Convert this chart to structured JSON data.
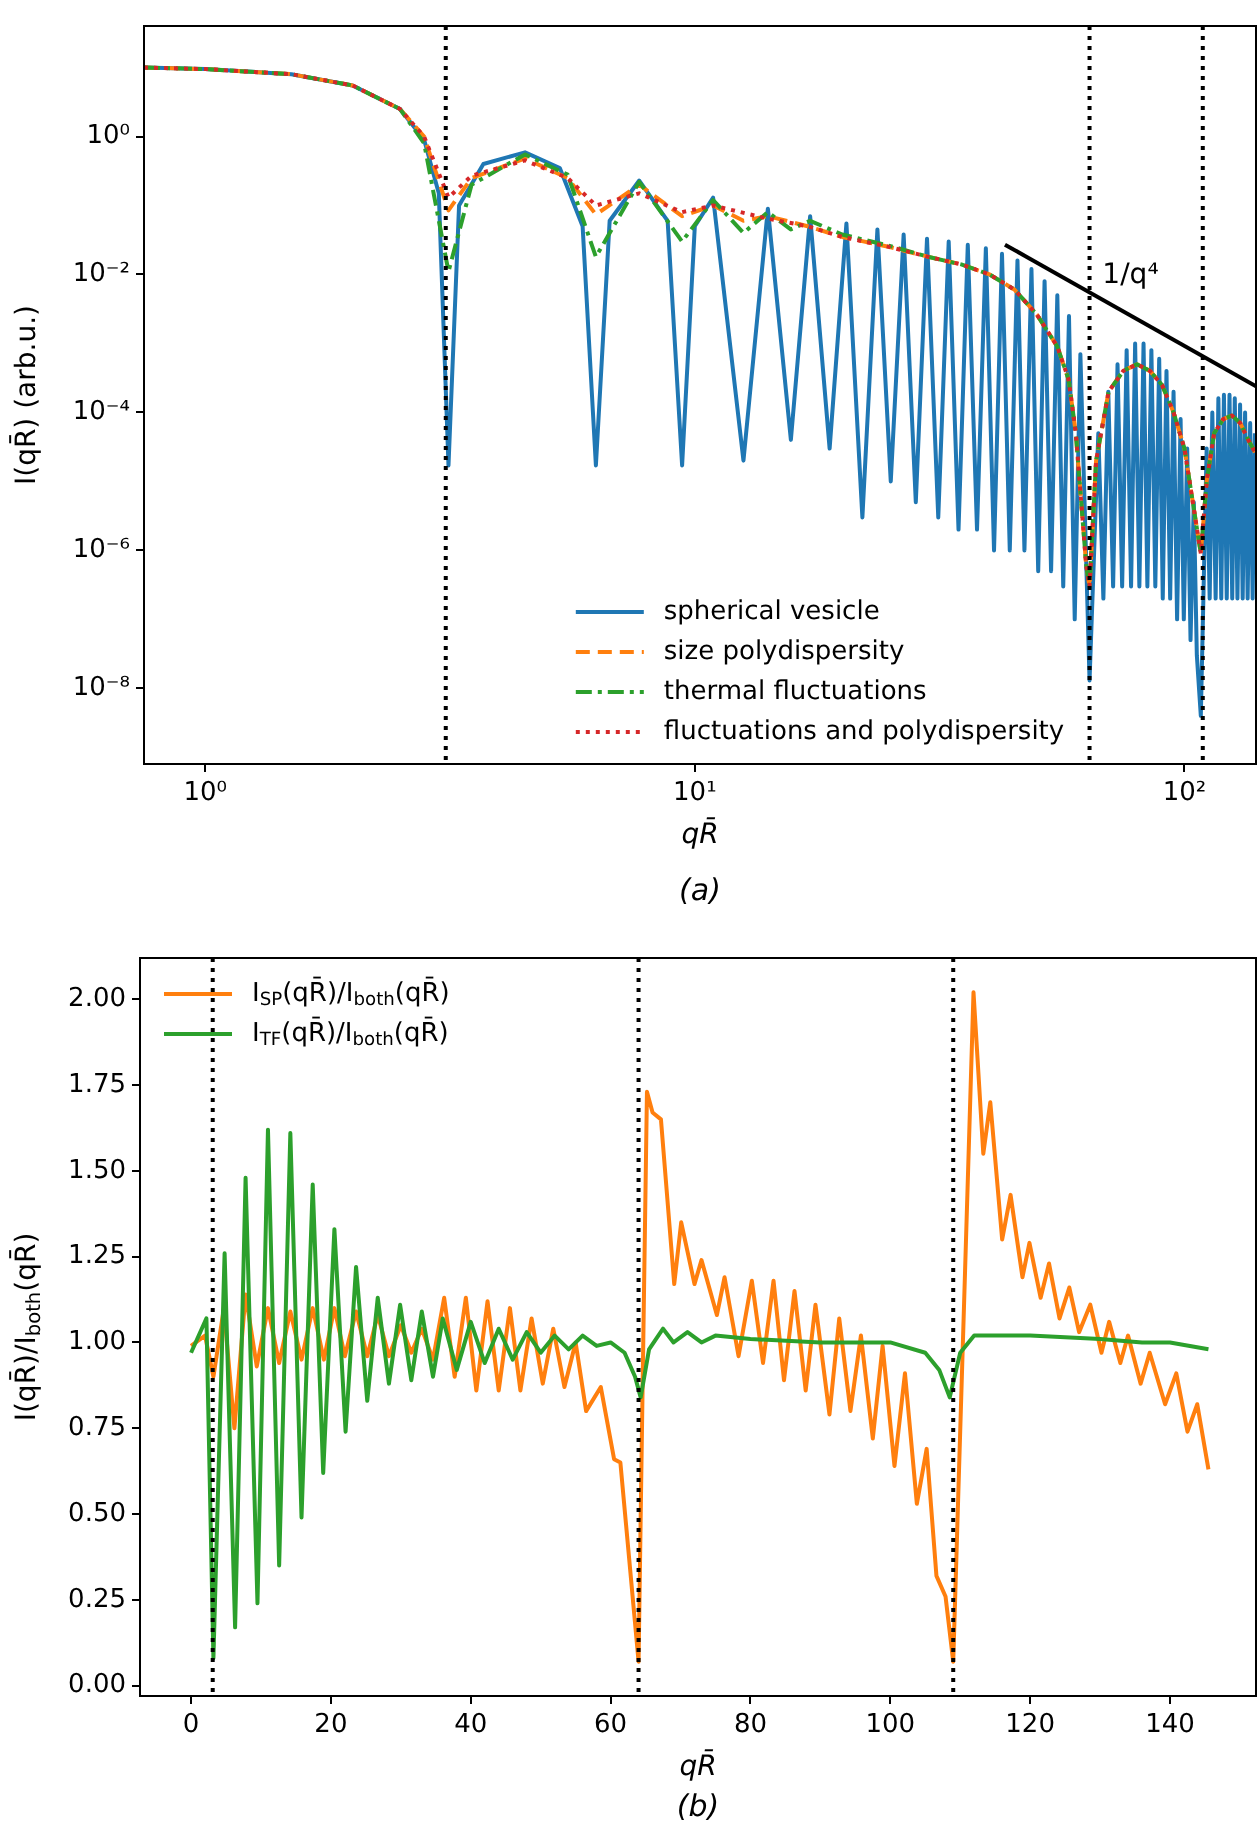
{
  "chart_data": [
    {
      "type": "line",
      "log": "xy",
      "xlabel": "qR̄",
      "ylabel": "I(qR̄) (arb.u.)",
      "legend": "bottom",
      "xlim": [
        0.75,
        140
      ],
      "ylim": [
        8e-10,
        40
      ],
      "xticks": [
        {
          "value": 1,
          "label": "10⁰"
        },
        {
          "value": 10,
          "label": "10¹"
        },
        {
          "value": 100,
          "label": "10²"
        }
      ],
      "yticks": [
        {
          "value": 1e-08,
          "label": "10⁻⁸"
        },
        {
          "value": 1e-06,
          "label": "10⁻⁶"
        },
        {
          "value": 0.0001,
          "label": "10⁻⁴"
        },
        {
          "value": 0.01,
          "label": "10⁻²"
        },
        {
          "value": 1,
          "label": "10⁰"
        }
      ],
      "series": [
        {
          "name": "spherical vesicle",
          "color": "#1f77b4",
          "line_style": "solid",
          "x": [
            0.75,
            1,
            1.5,
            2,
            2.5,
            2.8,
            3.0,
            3.14,
            3.3,
            3.7,
            4.5,
            5.3,
            5.9,
            6.28,
            6.7,
            7.7,
            8.8,
            9.42,
            10,
            10.9,
            12.57,
            14.1,
            15.71,
            17.2,
            18.85,
            20.4,
            21.99,
            23.6,
            25.13,
            26.7,
            28.27,
            29.8,
            31.42,
            33,
            34.56,
            36.1,
            37.7,
            39.3,
            40.84,
            42.4,
            43.98,
            45.6,
            47.12,
            48.7,
            50.27,
            51.8,
            53.41,
            55,
            56.55,
            58.1,
            59.69,
            61.3,
            64,
            66.7,
            68.3,
            69.9,
            71.5,
            73,
            74.6,
            76.2,
            77.8,
            79.3,
            80.9,
            82.5,
            84,
            85.6,
            87.2,
            88.8,
            90.3,
            91.9,
            93.5,
            95,
            96.6,
            98.2,
            99.7,
            101.3,
            102.9,
            104.5,
            106,
            108,
            111,
            112.6,
            114,
            115.8,
            117.3,
            118.9,
            120.4,
            122,
            123.6,
            125.2,
            126.7,
            128.3,
            129.9,
            131.5,
            133,
            134.6,
            136.2,
            137.8,
            139.3
          ],
          "values": [
            10,
            9.5,
            8,
            5.5,
            2.5,
            0.9,
            0.15,
            1.7e-05,
            0.1,
            0.4,
            0.59,
            0.35,
            0.05,
            1.7e-05,
            0.06,
            0.23,
            0.06,
            1.7e-05,
            0.05,
            0.13,
            2e-05,
            0.09,
            4e-05,
            0.07,
            3e-05,
            0.055,
            3e-06,
            0.045,
            1e-05,
            0.038,
            5e-06,
            0.033,
            3e-06,
            0.03,
            2e-06,
            0.027,
            2e-06,
            0.024,
            1e-06,
            0.02,
            1e-06,
            0.016,
            1e-06,
            0.012,
            5e-07,
            0.008,
            5e-07,
            0.005,
            3e-07,
            0.0025,
            1e-07,
            0.0007,
            1.3e-08,
            5e-05,
            2e-07,
            0.0002,
            3e-07,
            0.0005,
            3e-07,
            0.0008,
            3e-07,
            0.001,
            3e-07,
            0.001,
            3e-07,
            0.0008,
            3e-07,
            0.0006,
            2e-07,
            0.0004,
            2e-07,
            0.0002,
            1e-07,
            8e-05,
            1e-07,
            3e-05,
            5e-08,
            5e-06,
            3e-08,
            4e-09,
            3e-05,
            2e-07,
            0.0001,
            2e-07,
            0.00016,
            2e-07,
            0.00018,
            2e-07,
            0.00018,
            2e-07,
            0.00016,
            2e-07,
            0.00013,
            2e-07,
            0.0001,
            2e-07,
            7e-05,
            2e-07,
            5e-05
          ]
        },
        {
          "name": "size polydispersity",
          "color": "#ff7f0e",
          "line_style": "dashed",
          "x": [
            0.75,
            1,
            1.5,
            2,
            2.5,
            2.8,
            3.14,
            3.5,
            4.5,
            5.5,
            6.28,
            7.7,
            9.42,
            10.9,
            12.57,
            14.1,
            17,
            20,
            25,
            30,
            35,
            40,
            45,
            50,
            55,
            58,
            60,
            63,
            64,
            66,
            70,
            75,
            80,
            85,
            90,
            95,
            100,
            104,
            108,
            111,
            115,
            120,
            125,
            130,
            135,
            140
          ],
          "values": [
            10,
            9.5,
            8,
            5.5,
            2.5,
            1,
            0.085,
            0.25,
            0.48,
            0.25,
            0.074,
            0.2,
            0.07,
            0.1,
            0.06,
            0.07,
            0.05,
            0.035,
            0.025,
            0.018,
            0.014,
            0.01,
            0.006,
            0.0026,
            0.0009,
            0.0003,
            5e-05,
            6e-07,
            3e-07,
            2e-05,
            0.0002,
            0.0004,
            0.0005,
            0.0004,
            0.00025,
            0.0001,
            3e-05,
            5e-06,
            9e-07,
            1e-05,
            5e-05,
            8e-05,
            9e-05,
            7e-05,
            4e-05,
            2.5e-05
          ]
        },
        {
          "name": "thermal fluctuations",
          "color": "#2ca02c",
          "line_style": "dashdot",
          "x": [
            0.75,
            1,
            1.5,
            2,
            2.5,
            2.8,
            3.14,
            3.5,
            4.5,
            5.5,
            6.28,
            7.7,
            9.42,
            10.9,
            12.57,
            14.1,
            15.7,
            17.2,
            20,
            25,
            30,
            35,
            40,
            45,
            50,
            55,
            58,
            60,
            63,
            64,
            66,
            70,
            75,
            80,
            85,
            90,
            95,
            100,
            104,
            108,
            111,
            115,
            120,
            125,
            130,
            135,
            140
          ],
          "values": [
            10,
            9.5,
            8,
            5.5,
            2.5,
            0.8,
            0.011,
            0.2,
            0.55,
            0.28,
            0.018,
            0.22,
            0.03,
            0.12,
            0.04,
            0.08,
            0.045,
            0.06,
            0.038,
            0.026,
            0.018,
            0.014,
            0.01,
            0.006,
            0.0026,
            0.0009,
            0.0003,
            5e-05,
            6e-07,
            3e-07,
            2e-05,
            0.0002,
            0.0004,
            0.0005,
            0.0004,
            0.00025,
            0.0001,
            3e-05,
            5e-06,
            9e-07,
            1e-05,
            5e-05,
            8e-05,
            9e-05,
            7e-05,
            4e-05,
            2.5e-05
          ]
        },
        {
          "name": "fluctuations and polydispersity",
          "color": "#d62728",
          "line_style": "dotted",
          "x": [
            0.75,
            1,
            1.5,
            2,
            2.5,
            2.8,
            3.14,
            3.5,
            4.5,
            5.5,
            6.28,
            7.7,
            9.42,
            10.9,
            14,
            17,
            20,
            25,
            30,
            35,
            40,
            45,
            50,
            55,
            58,
            60,
            63,
            64,
            66,
            70,
            75,
            80,
            85,
            90,
            95,
            100,
            104,
            108,
            111,
            115,
            120,
            125,
            130,
            135,
            140
          ],
          "values": [
            10,
            9.5,
            8,
            5.5,
            2.5,
            1,
            0.13,
            0.27,
            0.45,
            0.25,
            0.1,
            0.15,
            0.08,
            0.1,
            0.065,
            0.05,
            0.035,
            0.025,
            0.018,
            0.014,
            0.01,
            0.006,
            0.0026,
            0.0009,
            0.0003,
            5e-05,
            6e-07,
            3e-07,
            2e-05,
            0.0002,
            0.0004,
            0.0005,
            0.0004,
            0.00025,
            0.0001,
            3e-05,
            5e-06,
            9e-07,
            1e-05,
            5e-05,
            8e-05,
            9e-05,
            7e-05,
            4e-05,
            2.5e-05
          ]
        },
        {
          "type": "line",
          "name": "1/q⁴",
          "color": "#000000",
          "line_style": "solid",
          "x": [
            43,
            140
          ],
          "values": [
            0.027,
            0.00024
          ]
        }
      ],
      "ref_lines": [
        {
          "axis": "x",
          "value": 3.1,
          "color": "#000000",
          "line_style": "dotted"
        },
        {
          "axis": "x",
          "value": 64,
          "color": "#000000",
          "line_style": "dotted"
        },
        {
          "axis": "x",
          "value": 109,
          "color": "#000000",
          "line_style": "dotted"
        }
      ],
      "annotations": [
        "(a)"
      ]
    },
    {
      "type": "line",
      "xlabel": "qR̄",
      "ylabel": "I(qR̄)/I$_{both}$(qR̄)",
      "legend": "top left",
      "xlim": [
        -7.3,
        152.3
      ],
      "ylim": [
        -0.03,
        2.12
      ],
      "xticks": [
        0,
        20,
        40,
        60,
        80,
        100,
        120,
        140
      ],
      "yticks": [
        {
          "value": 0,
          "label": "0.00"
        },
        {
          "value": 0.25,
          "label": "0.25"
        },
        {
          "value": 0.5,
          "label": "0.50"
        },
        {
          "value": 0.75,
          "label": "0.75"
        },
        {
          "value": 1,
          "label": "1.00"
        },
        {
          "value": 1.25,
          "label": "1.25"
        },
        {
          "value": 1.5,
          "label": "1.50"
        },
        {
          "value": 1.75,
          "label": "1.75"
        },
        {
          "value": 2,
          "label": "2.00"
        }
      ],
      "series": [
        {
          "name": "I$_{SP}$(qR̄)/I$_{both}$(qR̄)",
          "color": "#ff7f0e",
          "line_style": "solid",
          "x": [
            0,
            2,
            3.2,
            4.7,
            6.2,
            7.8,
            9.4,
            11,
            12.6,
            14.2,
            15.8,
            17.4,
            19,
            20.5,
            22,
            23.6,
            25.2,
            26.7,
            28.3,
            30,
            31.5,
            33,
            34.6,
            36.2,
            37.7,
            39.3,
            40.8,
            42.4,
            44,
            45.6,
            47.1,
            48.7,
            50.3,
            51.8,
            53.4,
            55,
            56.5,
            58.6,
            60.5,
            61.4,
            64,
            65.2,
            66,
            67.2,
            69.1,
            70.1,
            72,
            73,
            75.2,
            76.3,
            78.3,
            80.2,
            81.8,
            83.3,
            84.8,
            86.3,
            87.9,
            89.3,
            91.3,
            92.7,
            94.3,
            95.8,
            97.5,
            98.9,
            100.6,
            102.1,
            103.8,
            105.2,
            106.6,
            107.9,
            109,
            111.9,
            113.3,
            114.3,
            116,
            117.2,
            118.9,
            119.9,
            121.5,
            122.7,
            124.2,
            125.6,
            127,
            128.6,
            130.2,
            131.3,
            132.9,
            134,
            135.8,
            137.1,
            139.3,
            140.9,
            142.5,
            143.9,
            145.5
          ],
          "values": [
            0.99,
            1.02,
            0.9,
            1.1,
            0.75,
            1.14,
            0.93,
            1.1,
            0.94,
            1.09,
            0.95,
            1.1,
            0.95,
            1.1,
            0.96,
            1.09,
            0.96,
            1.08,
            0.96,
            1.05,
            0.97,
            1.04,
            0.95,
            1.13,
            0.9,
            1.13,
            0.86,
            1.12,
            0.86,
            1.1,
            0.86,
            1.07,
            0.88,
            1.04,
            0.87,
            1.0,
            0.8,
            0.87,
            0.66,
            0.65,
            0.07,
            1.73,
            1.67,
            1.65,
            1.17,
            1.35,
            1.17,
            1.24,
            1.08,
            1.19,
            0.96,
            1.18,
            0.94,
            1.18,
            0.89,
            1.15,
            0.86,
            1.11,
            0.79,
            1.07,
            0.8,
            1.02,
            0.72,
            0.99,
            0.64,
            0.91,
            0.53,
            0.69,
            0.32,
            0.26,
            0.07,
            2.02,
            1.55,
            1.7,
            1.3,
            1.43,
            1.19,
            1.29,
            1.13,
            1.23,
            1.07,
            1.16,
            1.03,
            1.11,
            0.97,
            1.06,
            0.94,
            1.02,
            0.88,
            0.97,
            0.82,
            0.91,
            0.74,
            0.82,
            0.63
          ]
        },
        {
          "name": "I$_{TF}$(qR̄)/I$_{both}$(qR̄)",
          "color": "#2ca02c",
          "line_style": "solid",
          "x": [
            0,
            2.2,
            3.2,
            4.8,
            6.3,
            7.8,
            9.5,
            11,
            12.6,
            14.2,
            15.8,
            17.4,
            18.9,
            20.5,
            22.1,
            23.6,
            25.2,
            26.7,
            28.3,
            29.9,
            31.5,
            33,
            34.6,
            36,
            38,
            40,
            42,
            44,
            46,
            48,
            50,
            52,
            54,
            56,
            58,
            60,
            62,
            63.5,
            64.3,
            65.5,
            67.5,
            69,
            71,
            73,
            75,
            80,
            90,
            100,
            105,
            107,
            108.5,
            110,
            112,
            120,
            130,
            136,
            140,
            145.5
          ],
          "values": [
            0.97,
            1.07,
            0.08,
            1.26,
            0.17,
            1.48,
            0.24,
            1.62,
            0.35,
            1.61,
            0.49,
            1.46,
            0.62,
            1.33,
            0.74,
            1.22,
            0.83,
            1.13,
            0.88,
            1.11,
            0.89,
            1.09,
            0.9,
            1.07,
            0.92,
            1.06,
            0.94,
            1.04,
            0.95,
            1.03,
            0.97,
            1.02,
            0.98,
            1.02,
            0.99,
            1.0,
            0.97,
            0.9,
            0.84,
            0.98,
            1.04,
            1.0,
            1.03,
            1.0,
            1.02,
            1.01,
            1.0,
            1.0,
            0.97,
            0.92,
            0.84,
            0.97,
            1.02,
            1.02,
            1.01,
            1.0,
            1.0,
            0.98
          ]
        }
      ],
      "ref_lines": [
        {
          "axis": "x",
          "value": 3.1,
          "color": "#000000",
          "line_style": "dotted"
        },
        {
          "axis": "x",
          "value": 64,
          "color": "#000000",
          "line_style": "dotted"
        },
        {
          "axis": "x",
          "value": 109,
          "color": "#000000",
          "line_style": "dotted"
        }
      ],
      "annotations": [
        "(b)"
      ]
    }
  ]
}
